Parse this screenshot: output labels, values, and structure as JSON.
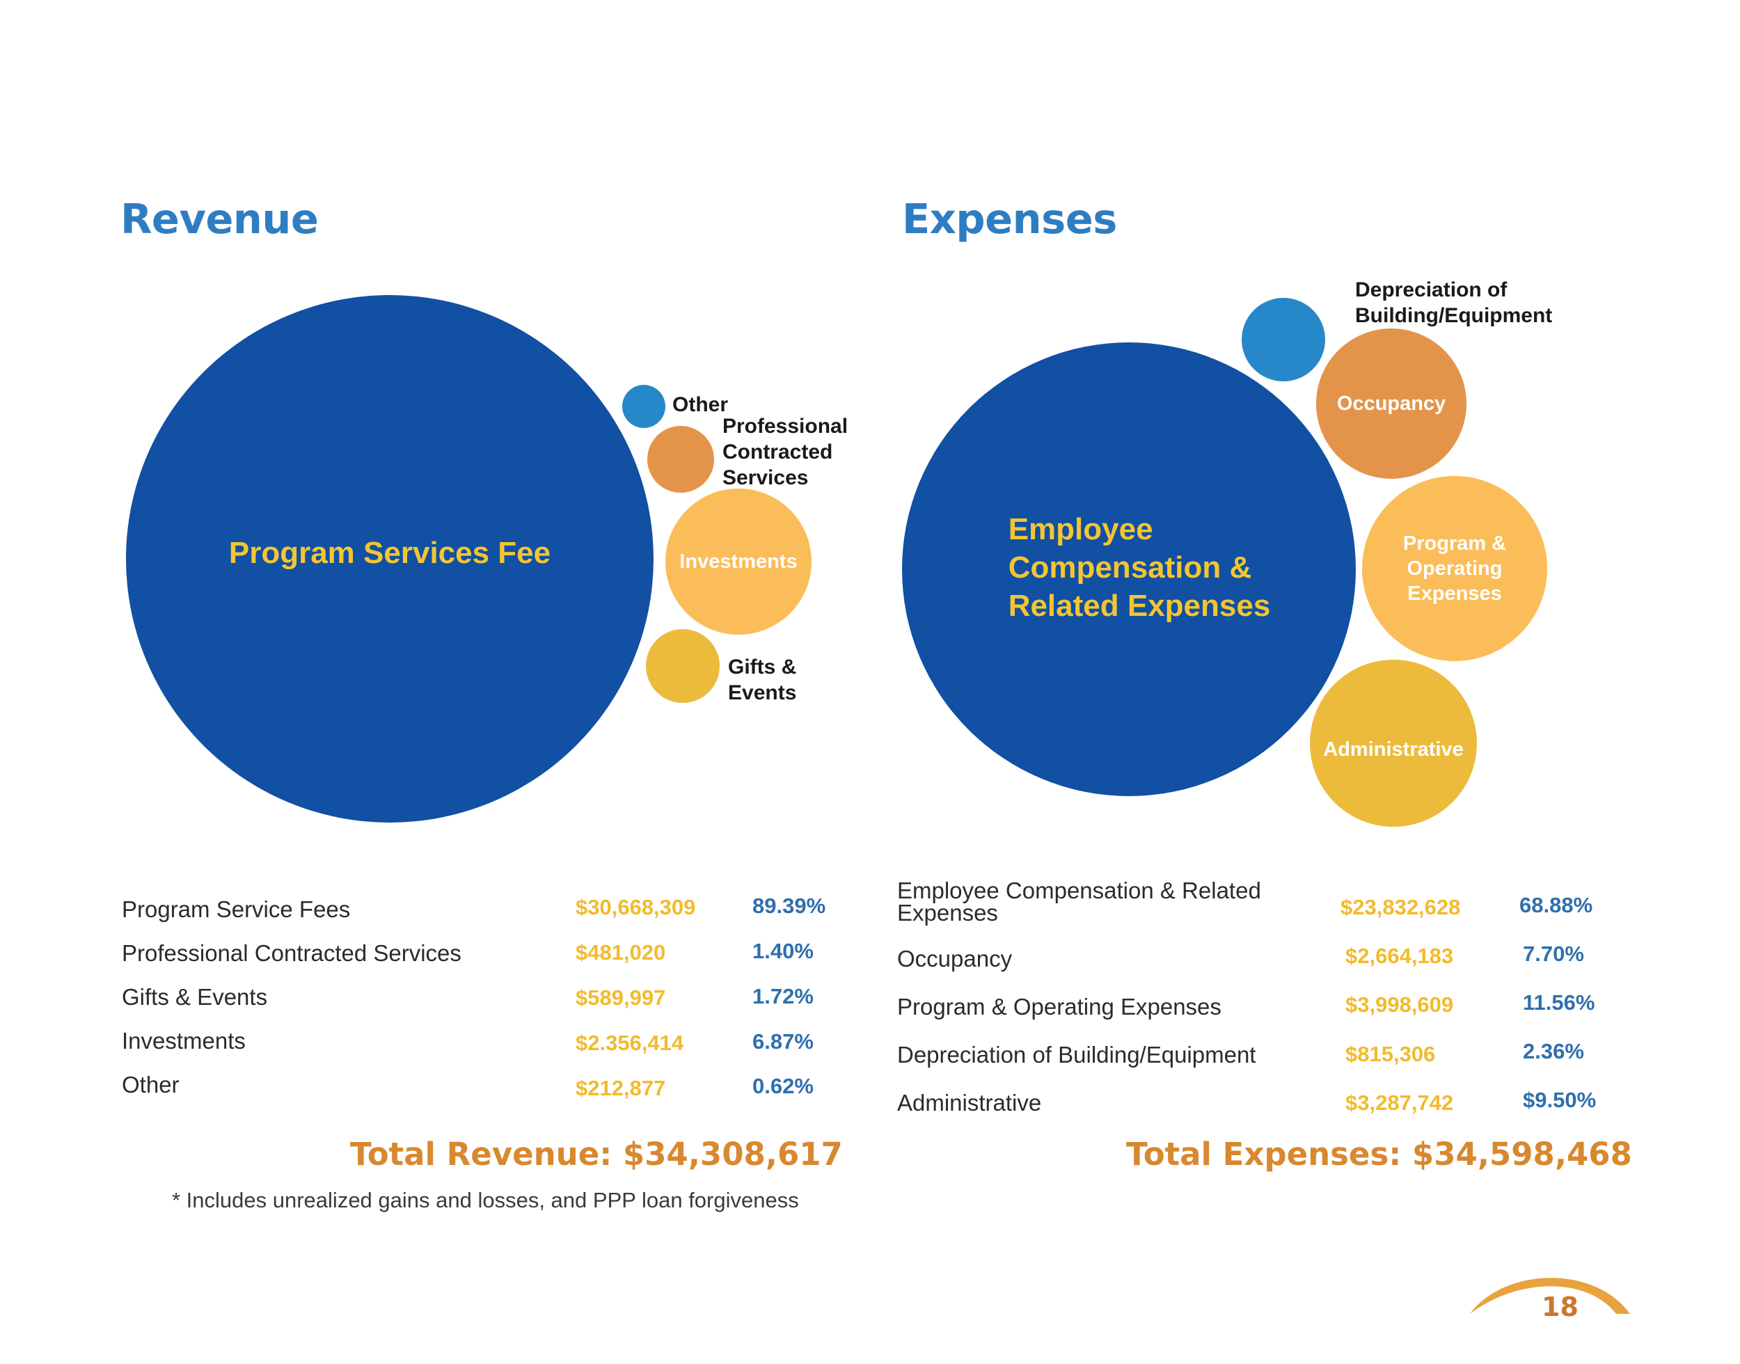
{
  "revenue": {
    "title": "Revenue",
    "bubbles": {
      "program": "Program Services Fee",
      "other": "Other",
      "professional": "Professional\nContracted\nServices",
      "investments": "Investments",
      "gifts": "Gifts &\nEvents"
    },
    "rows": [
      {
        "label": "Program Service Fees",
        "amount": "$30,668,309",
        "pct": "89.39%"
      },
      {
        "label": "Professional Contracted Services",
        "amount": "$481,020",
        "pct": "1.40%"
      },
      {
        "label": "Gifts & Events",
        "amount": "$589,997",
        "pct": "1.72%"
      },
      {
        "label": "Investments",
        "amount": "$2.356,414",
        "pct": "6.87%"
      },
      {
        "label": "Other",
        "amount": "$212,877",
        "pct": "0.62%"
      }
    ],
    "total": "Total Revenue: $34,308,617",
    "note": "* Includes unrealized gains and losses, and PPP loan forgiveness"
  },
  "expenses": {
    "title": "Expenses",
    "bubbles": {
      "employee": "Employee\nCompensation &\nRelated Expenses",
      "depreciation": "Depreciation of\nBuilding/Equipment",
      "occupancy": "Occupancy",
      "program": "Program &\nOperating\nExpenses",
      "administrative": "Administrative"
    },
    "rows": [
      {
        "label": "Employee Compensation & Related\nExpenses",
        "amount": "$23,832,628",
        "pct": "68.88%"
      },
      {
        "label": "Occupancy",
        "amount": "$2,664,183",
        "pct": "7.70%"
      },
      {
        "label": "Program & Operating Expenses",
        "amount": "$3,998,609",
        "pct": "11.56%"
      },
      {
        "label": "Depreciation of Building/Equipment",
        "amount": "$815,306",
        "pct": "2.36%"
      },
      {
        "label": "Administrative",
        "amount": "$3,287,742",
        "pct": "$9.50%"
      }
    ],
    "total": "Total Expenses: $34,598,468"
  },
  "page_number": "18",
  "colors": {
    "navy": "#1150a3",
    "blue": "#2688c8",
    "orange": "#e4944a",
    "light_orange": "#fbbd59",
    "gold": "#ecbb3c",
    "title_blue": "#2e7dc3",
    "total_orange": "#d8882f"
  }
}
